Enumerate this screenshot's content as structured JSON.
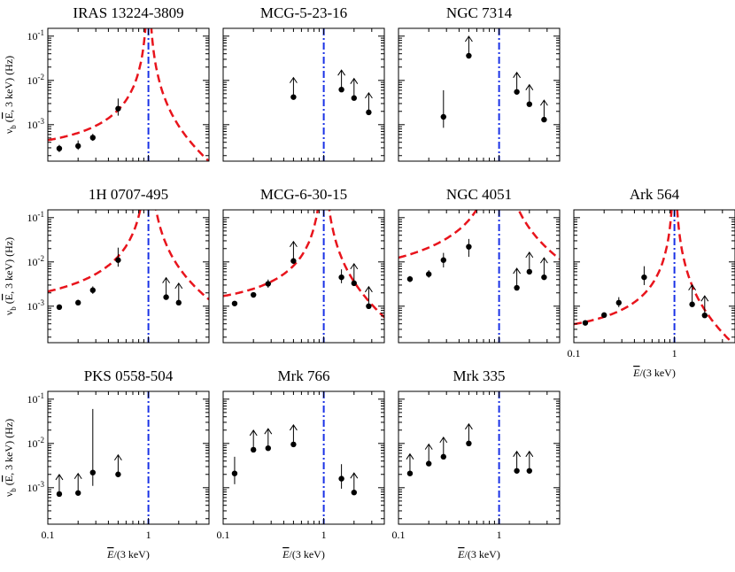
{
  "chart_data": {
    "type": "scatter",
    "xscale": "log",
    "yscale": "log",
    "xlim": [
      0.1,
      4.0
    ],
    "ylim": [
      0.00015,
      0.15
    ],
    "xlabel_main": "E",
    "xlabel_rest": "/(3 keV)",
    "ylabel": {
      "nu": "ν",
      "sub": "b",
      "open": " (",
      "E": "E",
      "rest": ", 3 keV) (Hz)"
    },
    "x_ticks": [
      "0.1",
      "1"
    ],
    "y_ticks": [
      {
        "base": "10",
        "exp": "-3"
      },
      {
        "base": "10",
        "exp": "-2"
      },
      {
        "base": "10",
        "exp": "-1"
      }
    ],
    "reference_line_x": 1.0,
    "line_colors": {
      "model": "#e8141c",
      "reference": "#1a32e6",
      "data": "#000000"
    },
    "panels": [
      {
        "name": "IRAS 13224-3809",
        "points": [
          {
            "x": 0.13,
            "y": 0.00029,
            "lo": 0.00024,
            "hi": 0.00035
          },
          {
            "x": 0.2,
            "y": 0.00033,
            "lo": 0.00027,
            "hi": 0.00044
          },
          {
            "x": 0.28,
            "y": 0.00051,
            "lo": 0.00043,
            "hi": 0.00062
          },
          {
            "x": 0.5,
            "y": 0.0023,
            "lo": 0.0016,
            "hi": 0.0039
          }
        ],
        "model": {
          "A": 0.00025,
          "k": 0.6,
          "b": 0.5
        }
      },
      {
        "name": "MCG-5-23-16",
        "points": [
          {
            "x": 0.5,
            "y": 0.0042,
            "arrow": true
          },
          {
            "x": 1.5,
            "y": 0.0062,
            "arrow": true
          },
          {
            "x": 2.0,
            "y": 0.004,
            "arrow": true
          },
          {
            "x": 2.8,
            "y": 0.0019,
            "arrow": true
          }
        ]
      },
      {
        "name": "NGC 7314",
        "points": [
          {
            "x": 0.28,
            "y": 0.0015,
            "lo": 0.00085,
            "hi": 0.006
          },
          {
            "x": 0.5,
            "y": 0.036,
            "arrow": true
          },
          {
            "x": 1.5,
            "y": 0.0055,
            "arrow": true
          },
          {
            "x": 2.0,
            "y": 0.0029,
            "arrow": true
          },
          {
            "x": 2.8,
            "y": 0.0013,
            "arrow": true
          }
        ]
      },
      {
        "name": "1H 0707-495",
        "points": [
          {
            "x": 0.13,
            "y": 0.00095,
            "lo": 0.00085,
            "hi": 0.0011
          },
          {
            "x": 0.2,
            "y": 0.0012,
            "lo": 0.00105,
            "hi": 0.0014
          },
          {
            "x": 0.28,
            "y": 0.0023,
            "lo": 0.0019,
            "hi": 0.0028
          },
          {
            "x": 0.5,
            "y": 0.011,
            "lo": 0.0078,
            "hi": 0.021
          },
          {
            "x": 1.5,
            "y": 0.0016,
            "arrow": true
          },
          {
            "x": 2.0,
            "y": 0.0012,
            "arrow": true
          }
        ],
        "model": {
          "A": 0.00078,
          "k": 0.4,
          "b": 0.5
        }
      },
      {
        "name": "MCG-6-30-15",
        "points": [
          {
            "x": 0.13,
            "y": 0.00115,
            "lo": 0.00105,
            "hi": 0.00128
          },
          {
            "x": 0.2,
            "y": 0.0018,
            "lo": 0.0016,
            "hi": 0.002
          },
          {
            "x": 0.28,
            "y": 0.0032,
            "lo": 0.0026,
            "hi": 0.004
          },
          {
            "x": 0.5,
            "y": 0.0105,
            "arrow": true
          },
          {
            "x": 1.5,
            "y": 0.0045,
            "lo": 0.0033,
            "hi": 0.0068
          },
          {
            "x": 2.0,
            "y": 0.0033,
            "arrow": true
          },
          {
            "x": 2.8,
            "y": 0.001,
            "arrow": true
          }
        ],
        "model": {
          "A": 0.00095,
          "k": 0.6,
          "b": 0.5
        }
      },
      {
        "name": "NGC 4051",
        "points": [
          {
            "x": 0.13,
            "y": 0.0041,
            "lo": 0.0035,
            "hi": 0.0048
          },
          {
            "x": 0.2,
            "y": 0.0053,
            "lo": 0.0044,
            "hi": 0.0065
          },
          {
            "x": 0.28,
            "y": 0.011,
            "lo": 0.0075,
            "hi": 0.016
          },
          {
            "x": 0.5,
            "y": 0.022,
            "lo": 0.013,
            "hi": 0.033
          },
          {
            "x": 1.5,
            "y": 0.0026,
            "arrow": true
          },
          {
            "x": 2.0,
            "y": 0.006,
            "arrow": true
          },
          {
            "x": 2.8,
            "y": 0.0045,
            "arrow": true
          }
        ],
        "model": {
          "A": 0.0031,
          "k": 0.3,
          "b": 0.5
        }
      },
      {
        "name": "Ark 564",
        "points": [
          {
            "x": 0.13,
            "y": 0.00042,
            "lo": 0.00037,
            "hi": 0.00048
          },
          {
            "x": 0.2,
            "y": 0.00063,
            "lo": 0.00056,
            "hi": 0.00072
          },
          {
            "x": 0.28,
            "y": 0.0012,
            "lo": 0.00095,
            "hi": 0.0016
          },
          {
            "x": 0.5,
            "y": 0.0045,
            "lo": 0.003,
            "hi": 0.008
          },
          {
            "x": 1.5,
            "y": 0.0011,
            "arrow": true
          },
          {
            "x": 2.0,
            "y": 0.00062,
            "arrow": true
          }
        ],
        "model": {
          "A": 0.00022,
          "k": 0.6,
          "b": 0.5
        }
      },
      {
        "name": "PKS 0558-504",
        "points": [
          {
            "x": 0.13,
            "y": 0.00072,
            "arrow": true
          },
          {
            "x": 0.2,
            "y": 0.00076,
            "arrow": true
          },
          {
            "x": 0.28,
            "y": 0.0022,
            "lo": 0.0011,
            "hi": 0.06
          },
          {
            "x": 0.5,
            "y": 0.002,
            "arrow": true
          }
        ]
      },
      {
        "name": "Mrk 766",
        "points": [
          {
            "x": 0.13,
            "y": 0.0021,
            "lo": 0.0012,
            "hi": 0.005
          },
          {
            "x": 0.2,
            "y": 0.0072,
            "arrow": true
          },
          {
            "x": 0.28,
            "y": 0.0078,
            "arrow": true
          },
          {
            "x": 0.5,
            "y": 0.0095,
            "arrow": true
          },
          {
            "x": 1.5,
            "y": 0.0016,
            "lo": 0.00095,
            "hi": 0.0034
          },
          {
            "x": 2.0,
            "y": 0.00078,
            "arrow": true
          }
        ]
      },
      {
        "name": "Mrk 335",
        "points": [
          {
            "x": 0.13,
            "y": 0.0021,
            "arrow": true
          },
          {
            "x": 0.2,
            "y": 0.0035,
            "arrow": true
          },
          {
            "x": 0.28,
            "y": 0.005,
            "arrow": true
          },
          {
            "x": 0.5,
            "y": 0.01,
            "arrow": true
          },
          {
            "x": 1.5,
            "y": 0.0024,
            "arrow": true
          },
          {
            "x": 2.0,
            "y": 0.0024,
            "arrow": true
          }
        ]
      }
    ]
  }
}
